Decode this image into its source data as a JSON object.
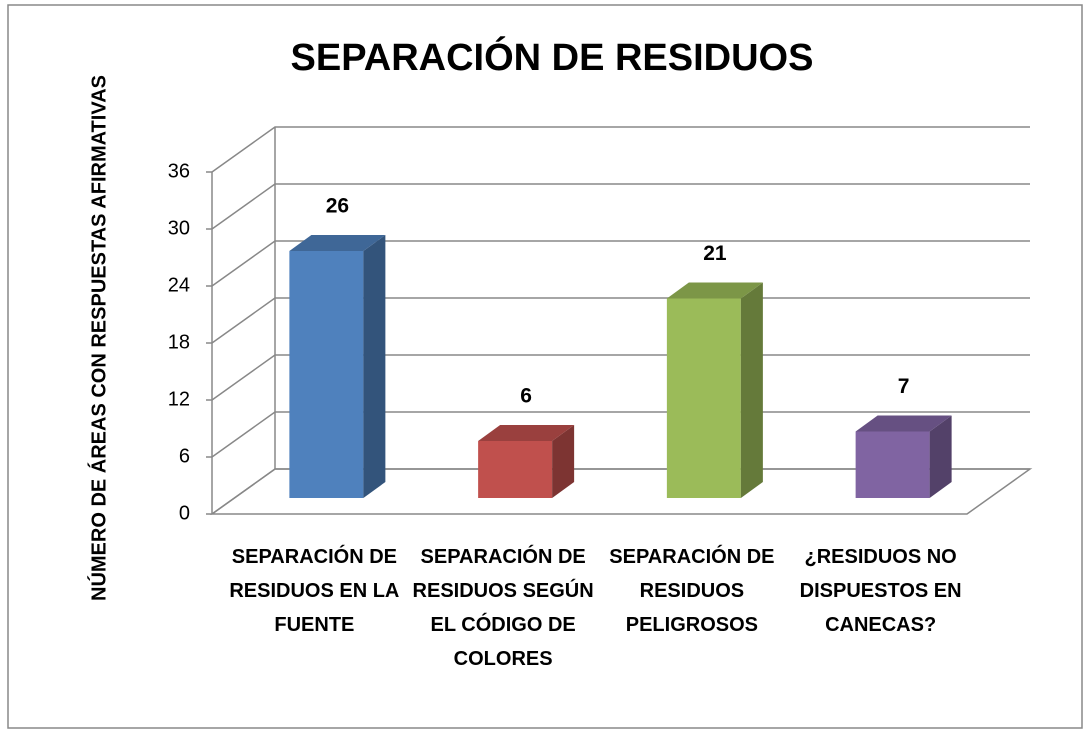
{
  "chart_data": {
    "type": "bar3d",
    "title": "SEPARACIÓN DE RESIDUOS",
    "y_label": "NÚMERO DE ÁREAS CON RESPUESTAS AFIRMATIVAS",
    "categories": [
      "SEPARACIÓN DE RESIDUOS EN LA FUENTE",
      "SEPARACIÓN DE RESIDUOS SEGÚN EL CÓDIGO DE COLORES",
      "SEPARACIÓN DE RESIDUOS PELIGROSOS",
      "¿RESIDUOS NO DISPUESTOS EN CANECAS?"
    ],
    "values": [
      26,
      6,
      21,
      7
    ],
    "colors": [
      "#4f81bd",
      "#c0504d",
      "#9bbb59",
      "#8064a2"
    ],
    "ylim": [
      0,
      36
    ],
    "yticks": [
      0,
      6,
      12,
      18,
      24,
      30,
      36
    ],
    "grid": true
  }
}
